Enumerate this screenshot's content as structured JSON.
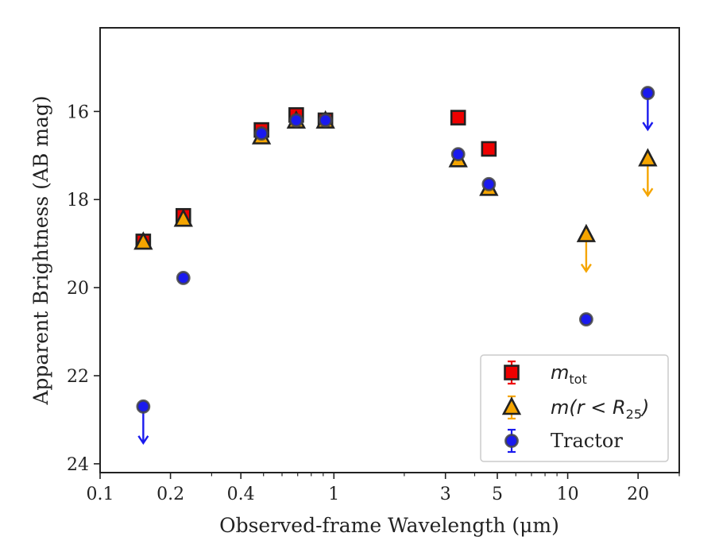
{
  "chart_data": {
    "type": "scatter",
    "xlabel": "Observed-frame Wavelength (μm)",
    "ylabel": "Apparent Brightness (AB mag)",
    "xscale": "log",
    "xlim": [
      0.1,
      30
    ],
    "ylim": [
      24.2,
      14.1
    ],
    "y_inverted": true,
    "grid": false,
    "legend_position": "bottom-right",
    "x_ticks": [
      {
        "value": 0.1,
        "label": "0.1"
      },
      {
        "value": 0.2,
        "label": "0.2"
      },
      {
        "value": 0.4,
        "label": "0.4"
      },
      {
        "value": 1,
        "label": "1"
      },
      {
        "value": 3,
        "label": "3"
      },
      {
        "value": 5,
        "label": "5"
      },
      {
        "value": 10,
        "label": "10"
      },
      {
        "value": 20,
        "label": "20"
      }
    ],
    "y_ticks": [
      {
        "value": 16,
        "label": "16"
      },
      {
        "value": 18,
        "label": "18"
      },
      {
        "value": 20,
        "label": "20"
      },
      {
        "value": 22,
        "label": "22"
      },
      {
        "value": 24,
        "label": "24"
      }
    ],
    "series": [
      {
        "key": "m_tot",
        "legend_main": "m",
        "legend_sub": "tot",
        "marker": "square",
        "color": "#ee0000",
        "points": [
          {
            "x": 0.153,
            "y": 18.95
          },
          {
            "x": 0.227,
            "y": 18.37
          },
          {
            "x": 0.49,
            "y": 16.42
          },
          {
            "x": 0.69,
            "y": 16.08
          },
          {
            "x": 0.92,
            "y": 16.2
          },
          {
            "x": 3.4,
            "y": 16.14
          },
          {
            "x": 4.6,
            "y": 16.85
          }
        ]
      },
      {
        "key": "m_r25",
        "legend_main": "m(r < R",
        "legend_sub": "25",
        "legend_tail": ")",
        "marker": "triangle",
        "color": "#f5a500",
        "points": [
          {
            "x": 0.153,
            "y": 18.97
          },
          {
            "x": 0.227,
            "y": 18.45
          },
          {
            "x": 0.49,
            "y": 16.58
          },
          {
            "x": 0.69,
            "y": 16.22
          },
          {
            "x": 0.92,
            "y": 16.22
          },
          {
            "x": 3.4,
            "y": 17.1
          },
          {
            "x": 4.6,
            "y": 17.75
          },
          {
            "x": 12.0,
            "y": 18.8,
            "upper_limit": true
          },
          {
            "x": 22.0,
            "y": 17.08,
            "upper_limit": true
          }
        ]
      },
      {
        "key": "tractor",
        "legend_main": "Tractor",
        "marker": "circle",
        "color": "#1a1aee",
        "points": [
          {
            "x": 0.153,
            "y": 22.7,
            "upper_limit": true
          },
          {
            "x": 0.227,
            "y": 19.78
          },
          {
            "x": 0.49,
            "y": 16.5
          },
          {
            "x": 0.69,
            "y": 16.2
          },
          {
            "x": 0.92,
            "y": 16.2
          },
          {
            "x": 3.4,
            "y": 16.97
          },
          {
            "x": 4.6,
            "y": 17.65
          },
          {
            "x": 12.0,
            "y": 20.72
          },
          {
            "x": 22.0,
            "y": 15.58,
            "upper_limit": true
          }
        ]
      }
    ]
  }
}
